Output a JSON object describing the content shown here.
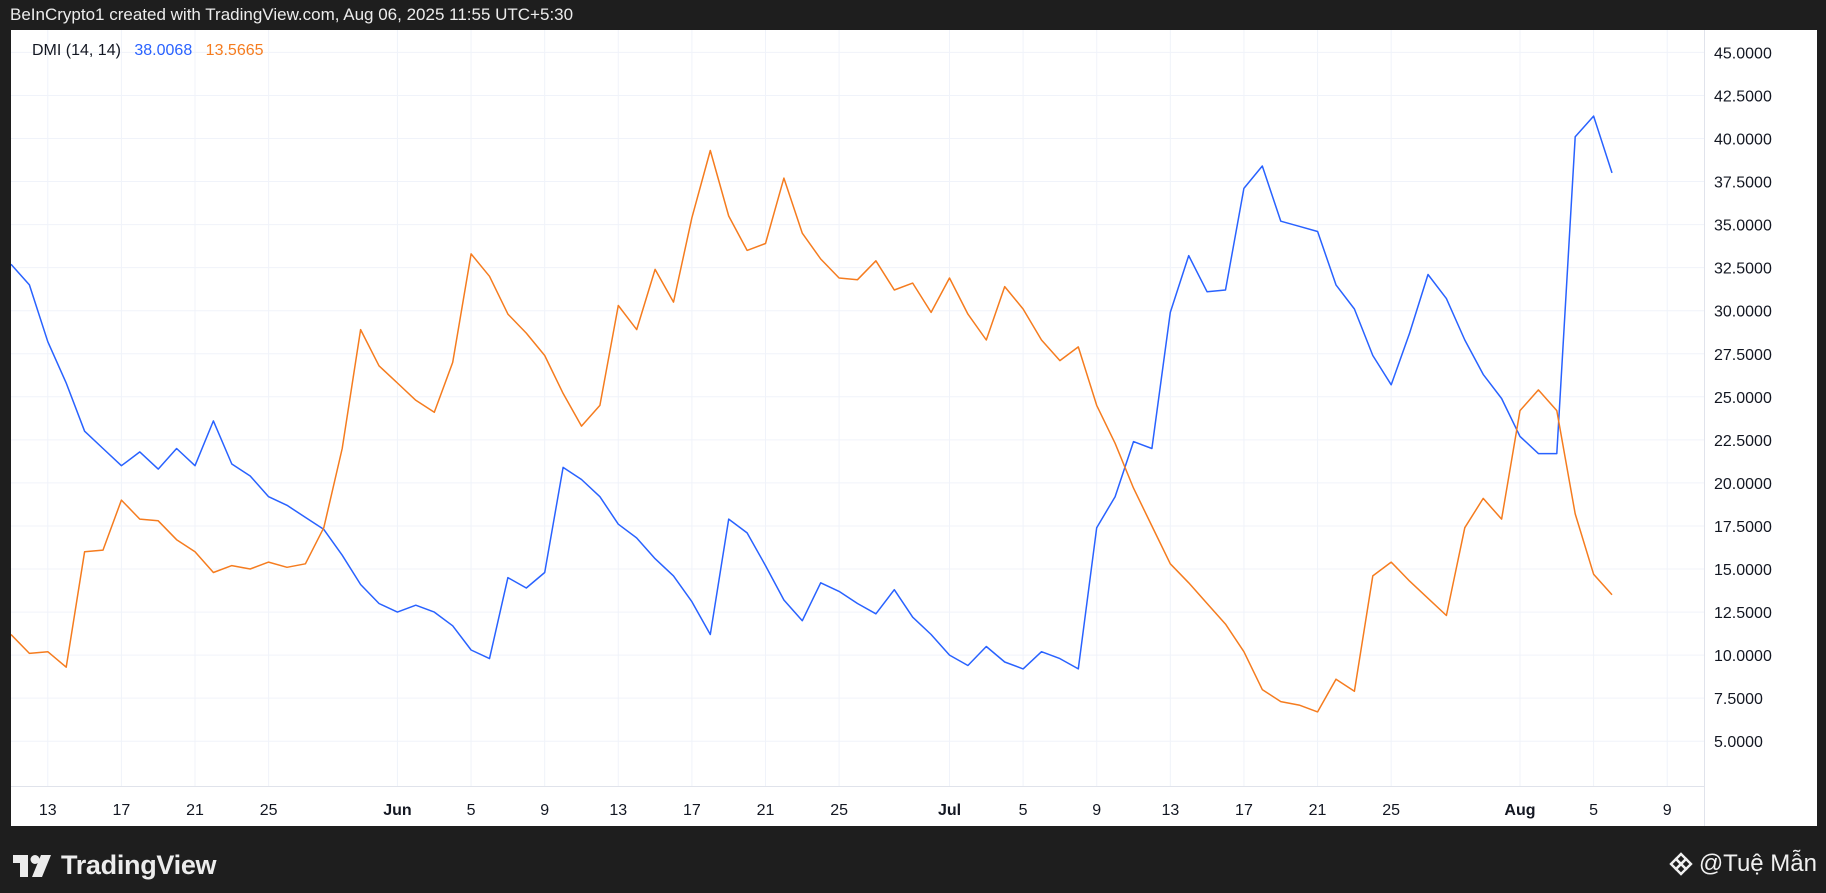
{
  "header": {
    "text": "BeInCrypto1 created with TradingView.com, Aug 06, 2025 11:55 UTC+5:30"
  },
  "legend": {
    "name": "DMI (14, 14)",
    "plus_value": "38.0068",
    "minus_value": "13.5665"
  },
  "footer": {
    "brand": "TradingView",
    "watermark": "@Tuệ Mẫn"
  },
  "colors": {
    "plus_di": "#2962ff",
    "minus_di": "#f57c1f",
    "grid": "#f0f3fa",
    "text": "#131722",
    "frame": "#1e1e1e"
  },
  "icons": {
    "brand_logo": "tradingview-logo-icon",
    "watermark_logo": "binance-diamond-icon"
  },
  "chart_data": {
    "type": "line",
    "x": [
      "2025-05-11",
      "2025-05-12",
      "2025-05-13",
      "2025-05-14",
      "2025-05-15",
      "2025-05-16",
      "2025-05-17",
      "2025-05-18",
      "2025-05-19",
      "2025-05-20",
      "2025-05-21",
      "2025-05-22",
      "2025-05-23",
      "2025-05-24",
      "2025-05-25",
      "2025-05-26",
      "2025-05-27",
      "2025-05-28",
      "2025-05-29",
      "2025-05-30",
      "2025-05-31",
      "2025-06-01",
      "2025-06-02",
      "2025-06-03",
      "2025-06-04",
      "2025-06-05",
      "2025-06-06",
      "2025-06-07",
      "2025-06-08",
      "2025-06-09",
      "2025-06-10",
      "2025-06-11",
      "2025-06-12",
      "2025-06-13",
      "2025-06-14",
      "2025-06-15",
      "2025-06-16",
      "2025-06-17",
      "2025-06-18",
      "2025-06-19",
      "2025-06-20",
      "2025-06-21",
      "2025-06-22",
      "2025-06-23",
      "2025-06-24",
      "2025-06-25",
      "2025-06-26",
      "2025-06-27",
      "2025-06-28",
      "2025-06-29",
      "2025-06-30",
      "2025-07-01",
      "2025-07-02",
      "2025-07-03",
      "2025-07-04",
      "2025-07-05",
      "2025-07-06",
      "2025-07-07",
      "2025-07-08",
      "2025-07-09",
      "2025-07-10",
      "2025-07-11",
      "2025-07-12",
      "2025-07-13",
      "2025-07-14",
      "2025-07-15",
      "2025-07-16",
      "2025-07-17",
      "2025-07-18",
      "2025-07-19",
      "2025-07-20",
      "2025-07-21",
      "2025-07-22",
      "2025-07-23",
      "2025-07-24",
      "2025-07-25",
      "2025-07-26",
      "2025-07-27",
      "2025-07-28",
      "2025-07-29",
      "2025-07-30",
      "2025-07-31",
      "2025-08-01",
      "2025-08-02",
      "2025-08-03",
      "2025-08-04",
      "2025-08-05",
      "2025-08-06"
    ],
    "series": [
      {
        "values": [
          32.7,
          31.5,
          28.2,
          25.8,
          23.0,
          22.0,
          21.0,
          21.8,
          20.8,
          22.0,
          21.0,
          23.6,
          21.1,
          20.4,
          19.2,
          18.7,
          18.0,
          17.3,
          15.8,
          14.1,
          13.0,
          12.5,
          12.9,
          12.5,
          11.7,
          10.3,
          9.8,
          14.5,
          13.9,
          14.8,
          20.9,
          20.2,
          19.2,
          17.6,
          16.8,
          15.6,
          14.6,
          13.1,
          11.2,
          17.9,
          17.1,
          15.2,
          13.2,
          12.0,
          14.2,
          13.7,
          13.0,
          12.4,
          13.8,
          12.2,
          11.2,
          10.0,
          9.4,
          10.5,
          9.6,
          9.2,
          10.2,
          9.8,
          9.2,
          17.4,
          19.2,
          22.4,
          22.0,
          29.9,
          33.2,
          31.1,
          31.2,
          37.1,
          38.4,
          35.2,
          34.9,
          34.6,
          31.5,
          30.1,
          27.4,
          25.7,
          28.7,
          32.1,
          30.7,
          28.3,
          26.3,
          24.9,
          22.7,
          21.7,
          21.7,
          40.1,
          41.3,
          38.0
        ]
      },
      {
        "values": [
          11.2,
          10.1,
          10.2,
          9.3,
          16.0,
          16.1,
          19.0,
          17.9,
          17.8,
          16.7,
          16.0,
          14.8,
          15.2,
          15.0,
          15.4,
          15.1,
          15.3,
          17.4,
          22.0,
          28.9,
          26.8,
          25.8,
          24.8,
          24.1,
          27.0,
          33.3,
          32.0,
          29.8,
          28.7,
          27.4,
          25.2,
          23.3,
          24.5,
          30.3,
          28.9,
          32.4,
          30.5,
          35.4,
          39.3,
          35.5,
          33.5,
          33.9,
          37.7,
          34.5,
          33.0,
          31.9,
          31.8,
          32.9,
          31.2,
          31.6,
          29.9,
          31.9,
          29.8,
          28.3,
          31.4,
          30.1,
          28.3,
          27.1,
          27.9,
          24.5,
          22.3,
          19.7,
          17.5,
          15.3,
          14.2,
          13.0,
          11.8,
          10.2,
          8.0,
          7.3,
          7.1,
          6.7,
          8.6,
          7.9,
          14.6,
          15.4,
          14.3,
          13.3,
          12.3,
          17.4,
          19.1,
          17.9,
          24.2,
          25.4,
          24.2,
          18.2,
          14.7,
          13.5
        ]
      }
    ],
    "yticks": [
      "45.0000",
      "42.5000",
      "40.0000",
      "37.5000",
      "35.0000",
      "32.5000",
      "30.0000",
      "27.5000",
      "25.0000",
      "22.5000",
      "20.0000",
      "17.5000",
      "15.0000",
      "12.5000",
      "10.0000",
      "7.5000",
      "5.0000"
    ],
    "xticks": [
      {
        "date": "2025-05-13",
        "label": "13",
        "bold": false
      },
      {
        "date": "2025-05-17",
        "label": "17",
        "bold": false
      },
      {
        "date": "2025-05-21",
        "label": "21",
        "bold": false
      },
      {
        "date": "2025-05-25",
        "label": "25",
        "bold": false
      },
      {
        "date": "2025-06-01",
        "label": "Jun",
        "bold": true
      },
      {
        "date": "2025-06-05",
        "label": "5",
        "bold": false
      },
      {
        "date": "2025-06-09",
        "label": "9",
        "bold": false
      },
      {
        "date": "2025-06-13",
        "label": "13",
        "bold": false
      },
      {
        "date": "2025-06-17",
        "label": "17",
        "bold": false
      },
      {
        "date": "2025-06-21",
        "label": "21",
        "bold": false
      },
      {
        "date": "2025-06-25",
        "label": "25",
        "bold": false
      },
      {
        "date": "2025-07-01",
        "label": "Jul",
        "bold": true
      },
      {
        "date": "2025-07-05",
        "label": "5",
        "bold": false
      },
      {
        "date": "2025-07-09",
        "label": "9",
        "bold": false
      },
      {
        "date": "2025-07-13",
        "label": "13",
        "bold": false
      },
      {
        "date": "2025-07-17",
        "label": "17",
        "bold": false
      },
      {
        "date": "2025-07-21",
        "label": "21",
        "bold": false
      },
      {
        "date": "2025-07-25",
        "label": "25",
        "bold": false
      },
      {
        "date": "2025-08-01",
        "label": "Aug",
        "bold": true
      },
      {
        "date": "2025-08-05",
        "label": "5",
        "bold": false
      },
      {
        "date": "2025-08-09",
        "label": "9",
        "bold": false
      }
    ],
    "ylim": [
      2.4,
      46.3
    ],
    "xlim": [
      "2025-05-11",
      "2025-08-11"
    ],
    "grid": true,
    "axis_position": "right"
  }
}
